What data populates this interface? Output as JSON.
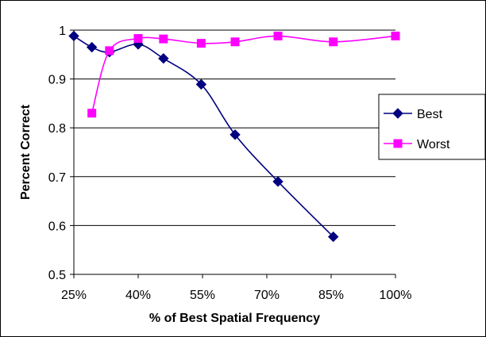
{
  "chart_data": {
    "type": "line",
    "xlabel": "% of Best Spatial Frequency",
    "ylabel": "Percent Correct",
    "xlim": [
      25,
      100
    ],
    "ylim": [
      0.5,
      1.0
    ],
    "x_ticks": [
      25,
      40,
      55,
      70,
      85,
      100
    ],
    "x_tick_labels": [
      "25%",
      "40%",
      "55%",
      "70%",
      "85%",
      "100%"
    ],
    "y_ticks": [
      0.5,
      0.6,
      0.7,
      0.8,
      0.9,
      1.0
    ],
    "y_tick_labels": [
      "0.5",
      "0.6",
      "0.7",
      "0.8",
      "0.9",
      "1"
    ],
    "grid": "horizontal",
    "legend_position": "right",
    "smooth": true,
    "series": [
      {
        "name": "Best",
        "color": "#000080",
        "marker": "diamond",
        "x": [
          25,
          29.2,
          33.3,
          40,
          45.9,
          54.7,
          62.6,
          72.6,
          85.5
        ],
        "y": [
          0.988,
          0.965,
          0.955,
          0.971,
          0.942,
          0.889,
          0.786,
          0.69,
          0.577
        ]
      },
      {
        "name": "Worst",
        "color": "#FF00FF",
        "marker": "square",
        "x": [
          29.2,
          33.3,
          40,
          45.9,
          54.7,
          62.6,
          72.6,
          85.5,
          100
        ],
        "y": [
          0.83,
          0.958,
          0.983,
          0.982,
          0.973,
          0.976,
          0.988,
          0.976,
          0.988
        ]
      }
    ]
  }
}
